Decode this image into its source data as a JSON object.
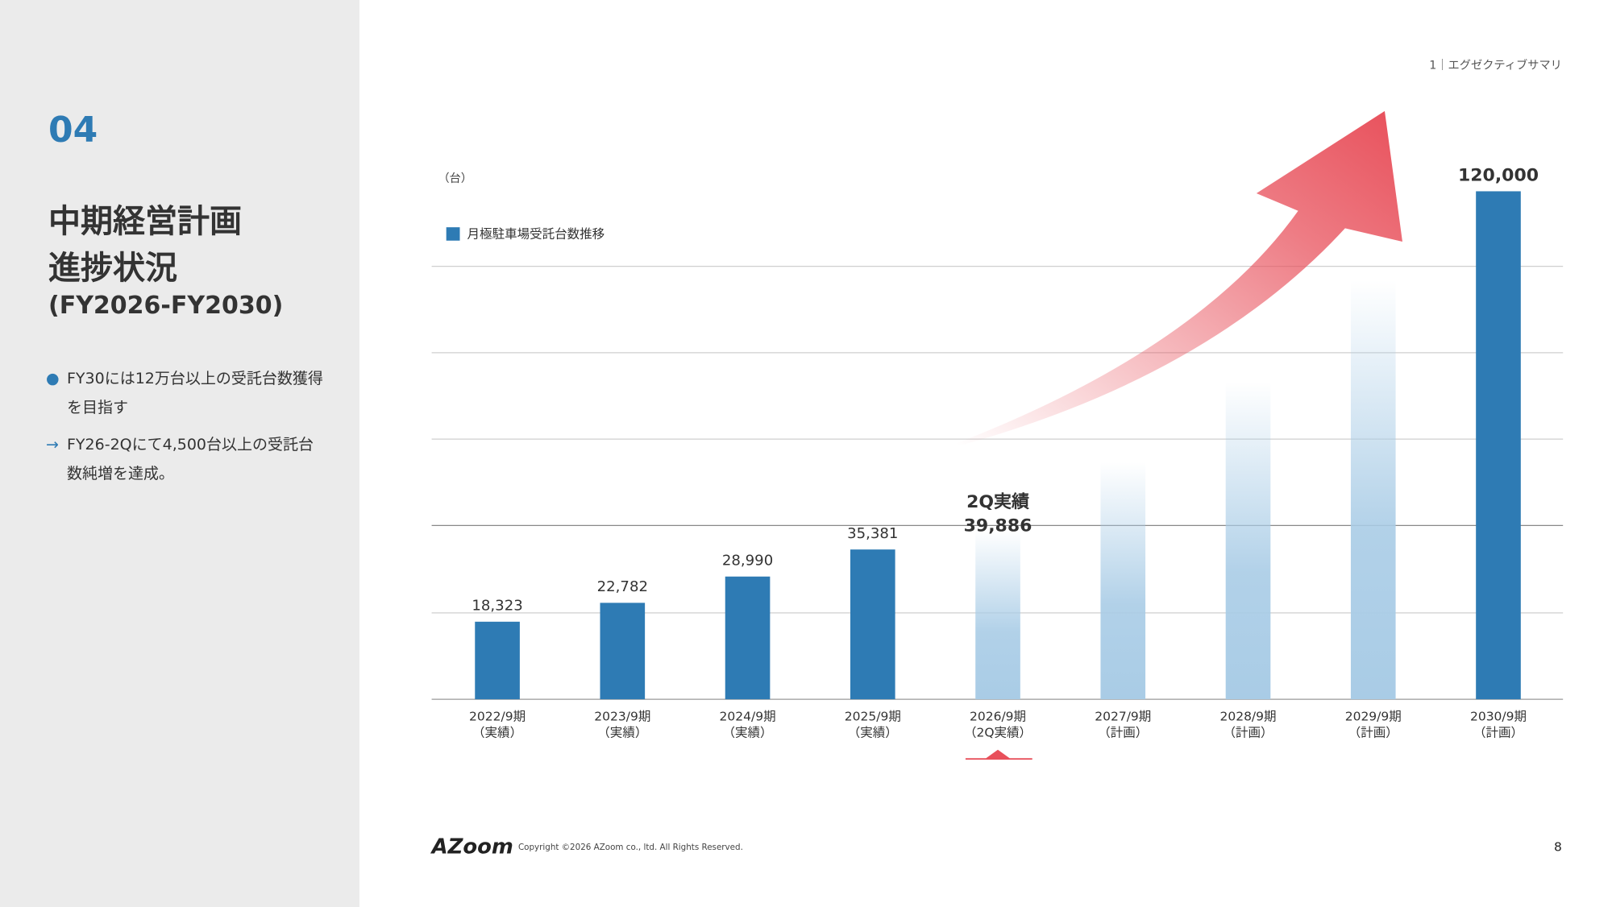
{
  "section_number": "04",
  "title_lines": [
    "中期経営計画",
    "進捗状況"
  ],
  "subtitle": "(FY2026-FY2030)",
  "bullets": [
    {
      "marker": "●",
      "text": "FY30には12万台以上の受託台数獲得を目指す"
    },
    {
      "marker": "→",
      "text": "FY26-2Qにて4,500台以上の受託台数純増を達成。"
    }
  ],
  "header": "1｜エグゼクティブサマリ",
  "footer": {
    "logo": "AZoom",
    "copyright": "Copyright ©2026 AZoom co., ltd. All Rights Reserved.",
    "page": "8"
  },
  "chart_data": {
    "type": "bar",
    "y_label": "（台）",
    "categories": [
      "2022/9期",
      "2023/9期",
      "2024/9期",
      "2025/9期",
      "2026/9期",
      "2027/9期",
      "2028/9期",
      "2029/9期",
      "2030/9期"
    ],
    "category_sublabels": [
      "（実績）",
      "（実績）",
      "（実績）",
      "（実績）",
      "（2Q実績）",
      "（計画）",
      "（計画）",
      "（計画）",
      "（計画）"
    ],
    "series": [
      {
        "name": "月極駐車場受託台数推移",
        "color": "#2e7bb4",
        "values": [
          18323,
          22782,
          28990,
          35381,
          39886,
          56000,
          75000,
          99000,
          120000
        ],
        "value_labels": [
          "18,323",
          "22,782",
          "28,990",
          "35,381",
          "39,886",
          null,
          null,
          null,
          "120,000"
        ],
        "bar_styles": [
          "solid",
          "solid",
          "solid",
          "solid",
          "faded",
          "faded",
          "faded",
          "faded",
          "solid"
        ]
      }
    ],
    "highlight_label": "2Q実績",
    "ylim": [
      0,
      120000
    ]
  }
}
